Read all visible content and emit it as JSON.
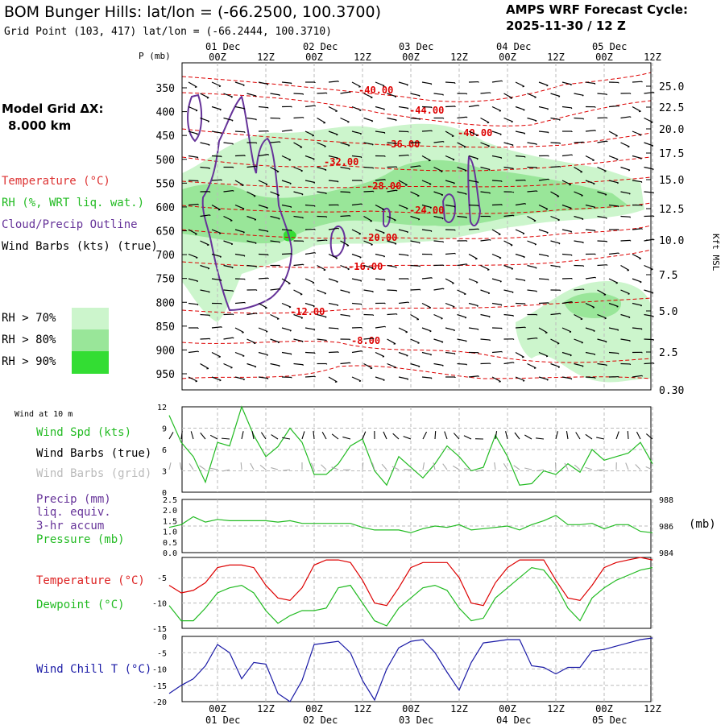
{
  "header": {
    "station": "BOM Bunger Hills:  lat/lon = (-66.2500, 100.3700)",
    "grid_point": "Grid Point (103, 417) lat/lon = (-66.2444, 100.3710)",
    "cycle_line1": "AMPS WRF Forecast Cycle:",
    "cycle_line2": "2025-11-30 / 12  Z",
    "model_grid_line1": "Model Grid ΔX:",
    "model_grid_line2": "8.000 km"
  },
  "legend_main": {
    "temperature": "Temperature (°C)",
    "rh": "RH (%, WRT liq. wat.)",
    "cloud": "Cloud/Precip Outline",
    "wind": "Wind Barbs (kts) (true)",
    "rh70": "RH > 70%",
    "rh80": "RH > 80%",
    "rh90": "RH > 90%"
  },
  "colors": {
    "temp_contour": "#dd0000",
    "rh70": "#ccf5cc",
    "rh80": "#99e699",
    "rh90": "#33dd33",
    "cloud": "#663399",
    "wind_speed": "#22bb22",
    "wind_chill": "#1a1aa6",
    "barb_grid": "#aaaaaa"
  },
  "time_axis": {
    "hours": [
      "00Z",
      "12Z",
      "00Z",
      "12Z",
      "00Z",
      "12Z",
      "00Z",
      "12Z",
      "00Z",
      "12Z"
    ],
    "dates": [
      "01 Dec",
      "02 Dec",
      "03 Dec",
      "04 Dec",
      "05 Dec"
    ]
  },
  "chart_data": [
    {
      "type": "contour",
      "name": "vertical_cross_section",
      "xlabel": "Forecast time",
      "ylabel": "P (mb)",
      "right_label": "Kft MSL",
      "pressure_ticks": [
        350,
        400,
        450,
        500,
        550,
        600,
        650,
        700,
        750,
        800,
        850,
        900,
        950
      ],
      "height_ticks": [
        "25.0",
        "22.5",
        "20.0",
        "17.5",
        "15.0",
        "12.5",
        "10.0",
        "7.5",
        "5.0",
        "2.5",
        "0.30"
      ],
      "temperature_labels": [
        "-40.00",
        "-44.00",
        "-36.00",
        "-40.00",
        "-32.00",
        "-28.00",
        "-24.00",
        "-20.00",
        "-16.00",
        "-12.00",
        "-8.00"
      ]
    },
    {
      "type": "line",
      "name": "wind_at_10m",
      "panel_title": "Wind at 10 m",
      "legend": [
        "Wind Spd (kts)",
        "Wind Barbs (true)",
        "Wind Barbs (grid)"
      ],
      "y_ticks": [
        "12",
        "9",
        "6",
        "3",
        "0"
      ],
      "ylim": [
        0,
        12
      ],
      "x_hours": [
        -12,
        -9,
        -6,
        -3,
        0,
        3,
        6,
        9,
        12,
        15,
        18,
        21,
        24,
        27,
        30,
        33,
        36,
        39,
        42,
        45,
        48,
        51,
        54,
        57,
        60,
        63,
        66,
        69,
        72,
        75,
        78,
        81,
        84,
        87,
        90,
        93,
        96,
        99,
        102,
        105,
        108
      ],
      "series": [
        {
          "name": "Wind Spd (kts)",
          "values": [
            10.8,
            7,
            5,
            1.4,
            7,
            6.5,
            12,
            8,
            5,
            6.4,
            9,
            7,
            2.5,
            2.5,
            4,
            6.5,
            7.5,
            3,
            1,
            5,
            3.5,
            2,
            4,
            6.5,
            5,
            3,
            3.5,
            8,
            5,
            1,
            1.2,
            3,
            2.5,
            4,
            2.8,
            6,
            4.5,
            5,
            5.5,
            7,
            4
          ]
        }
      ]
    },
    {
      "type": "line",
      "name": "precip_pressure",
      "legend": [
        "Precip (mm)",
        "liq. equiv.",
        "3-hr accum",
        "Pressure (mb)"
      ],
      "y_ticks_left": [
        "2.5",
        "2.0",
        "1.5",
        "1.0",
        "0.5",
        "0.0"
      ],
      "y_ticks_right": [
        "988",
        "986",
        "984"
      ],
      "right_unit": "(mb)",
      "x_hours": [
        -12,
        -9,
        -6,
        -3,
        0,
        3,
        6,
        9,
        12,
        15,
        18,
        21,
        24,
        27,
        30,
        33,
        36,
        39,
        42,
        45,
        48,
        51,
        54,
        57,
        60,
        63,
        66,
        69,
        72,
        75,
        78,
        81,
        84,
        87,
        90,
        93,
        96,
        99,
        102,
        105,
        108
      ],
      "series": [
        {
          "name": "Pressure (mb)",
          "values": [
            985.9,
            986.1,
            986.7,
            986.3,
            986.5,
            986.4,
            986.4,
            986.4,
            986.4,
            986.3,
            986.4,
            986.2,
            986.2,
            986.2,
            986.2,
            986.2,
            985.9,
            985.7,
            985.7,
            985.7,
            985.5,
            985.8,
            986,
            985.9,
            986.1,
            985.7,
            985.8,
            985.9,
            986,
            985.7,
            986.1,
            986.4,
            986.8,
            986.1,
            986.1,
            986.2,
            985.8,
            986.1,
            986.1,
            985.6,
            985.5
          ]
        }
      ]
    },
    {
      "type": "line",
      "name": "temperature_dewpoint",
      "legend": [
        "Temperature (°C)",
        "Dewpoint (°C)"
      ],
      "y_ticks": [
        "-5",
        "-10",
        "-15"
      ],
      "ylim": [
        -15,
        -1
      ],
      "x_hours": [
        -12,
        -9,
        -6,
        -3,
        0,
        3,
        6,
        9,
        12,
        15,
        18,
        21,
        24,
        27,
        30,
        33,
        36,
        39,
        42,
        45,
        48,
        51,
        54,
        57,
        60,
        63,
        66,
        69,
        72,
        75,
        78,
        81,
        84,
        87,
        90,
        93,
        96,
        99,
        102,
        105,
        108
      ],
      "series": [
        {
          "name": "Temperature (°C)",
          "values": [
            -6.5,
            -8,
            -7.5,
            -6,
            -3,
            -2.5,
            -2.5,
            -3,
            -6.5,
            -9,
            -9.5,
            -7,
            -2.5,
            -1.5,
            -1.5,
            -2,
            -5.5,
            -10,
            -10.5,
            -7,
            -3,
            -2,
            -2,
            -2,
            -5,
            -10,
            -10.5,
            -6,
            -3,
            -1.5,
            -1.5,
            -1.5,
            -5.5,
            -9,
            -9.5,
            -6.5,
            -3,
            -2,
            -1.5,
            -1,
            -1.5
          ]
        },
        {
          "name": "Dewpoint (°C)",
          "values": [
            -10.5,
            -13.5,
            -13.5,
            -11,
            -8,
            -7,
            -6.5,
            -8,
            -11.5,
            -14,
            -12.5,
            -11.5,
            -11.5,
            -11,
            -7,
            -6.5,
            -10,
            -13.5,
            -14.5,
            -11,
            -9,
            -7,
            -6.5,
            -7.5,
            -11,
            -13.5,
            -13,
            -9,
            -7,
            -5,
            -3,
            -3.5,
            -6.5,
            -11,
            -13.5,
            -9,
            -7,
            -5.5,
            -4.5,
            -3.5,
            -3
          ]
        }
      ]
    },
    {
      "type": "line",
      "name": "wind_chill",
      "legend": [
        "Wind Chill T (°C)"
      ],
      "y_ticks": [
        "0",
        "-5",
        "-10",
        "-15",
        "-20"
      ],
      "ylim": [
        -20,
        0
      ],
      "x_hours": [
        -12,
        -9,
        -6,
        -3,
        0,
        3,
        6,
        9,
        12,
        15,
        18,
        21,
        24,
        27,
        30,
        33,
        36,
        39,
        42,
        45,
        48,
        51,
        54,
        57,
        60,
        63,
        66,
        69,
        72,
        75,
        78,
        81,
        84,
        87,
        90,
        93,
        96,
        99,
        102,
        105,
        108
      ],
      "series": [
        {
          "name": "Wind Chill T (°C)",
          "values": [
            -17.5,
            -15,
            -13,
            -9,
            -2.5,
            -5,
            -13,
            -8,
            -8.5,
            -17.5,
            -20,
            -13.5,
            -2.5,
            -2,
            -1.5,
            -5,
            -13.5,
            -19.5,
            -10,
            -3.5,
            -1.5,
            -1,
            -5,
            -11,
            -16.5,
            -8,
            -2,
            -1.5,
            -1,
            -1,
            -9,
            -9.5,
            -11.5,
            -9.5,
            -9.5,
            -4.5,
            -4,
            -3,
            -2,
            -1,
            -0.5
          ]
        }
      ]
    }
  ]
}
